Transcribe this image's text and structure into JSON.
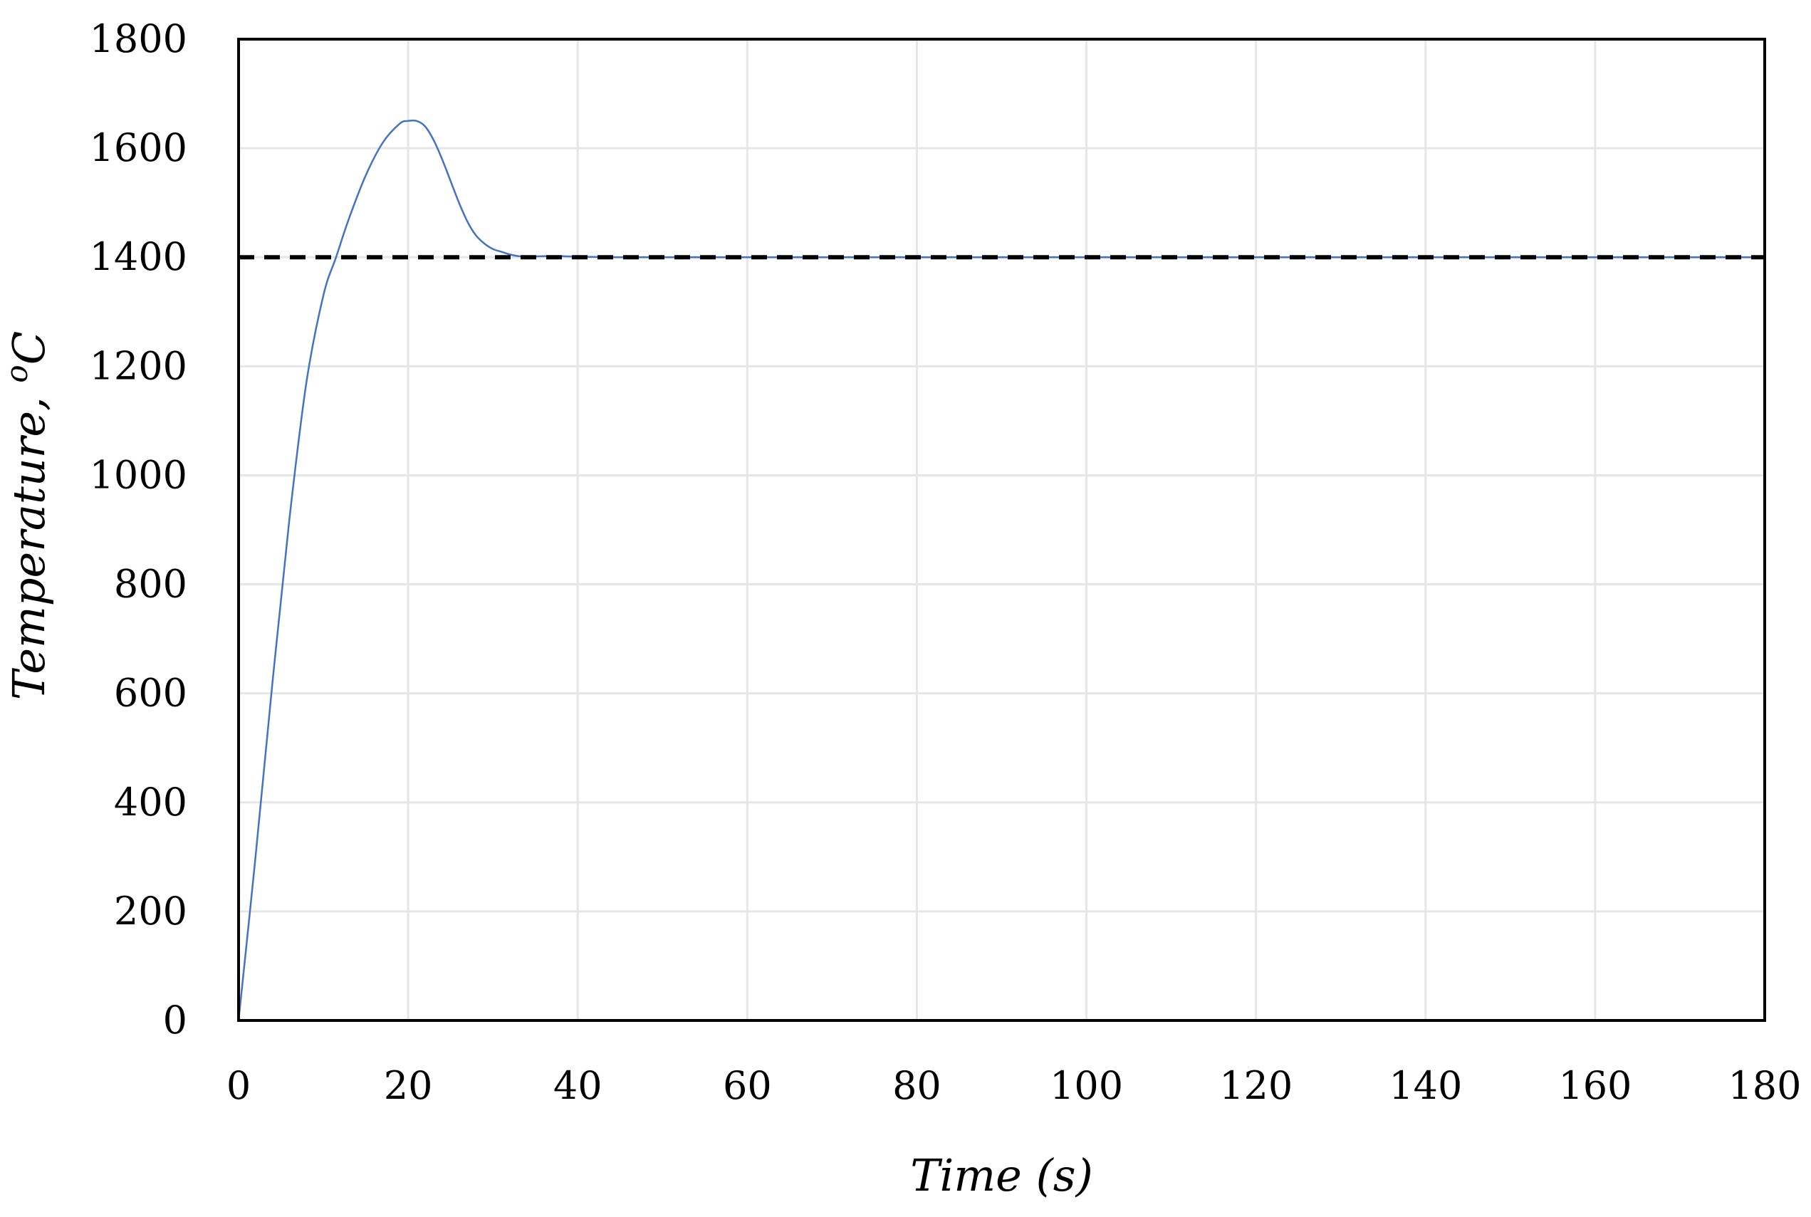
{
  "chart_data": {
    "type": "line",
    "title": "",
    "xlabel": "Time (s)",
    "ylabel_main": "Temperature, ",
    "ylabel_sup": "o",
    "ylabel_unit": "C",
    "xlim": [
      0,
      180
    ],
    "ylim": [
      0,
      1800
    ],
    "x_ticks": [
      0,
      20,
      40,
      60,
      80,
      100,
      120,
      140,
      160,
      180
    ],
    "y_ticks": [
      0,
      200,
      400,
      600,
      800,
      1000,
      1200,
      1400,
      1600,
      1800
    ],
    "grid": true,
    "legend": "none",
    "series": [
      {
        "color": "#4472c4",
        "style": "solid",
        "x": [
          0,
          2,
          4,
          6,
          8,
          10,
          11.5,
          13,
          15,
          17,
          19,
          20,
          21,
          22,
          23,
          24,
          25,
          26,
          27,
          28,
          29,
          30,
          31,
          32,
          33,
          34,
          36,
          38,
          40,
          45,
          50,
          60,
          80,
          100,
          120,
          140,
          160,
          180
        ],
        "y": [
          0,
          300,
          620,
          920,
          1170,
          1330,
          1400,
          1470,
          1550,
          1610,
          1645,
          1650,
          1650,
          1640,
          1615,
          1580,
          1540,
          1500,
          1465,
          1440,
          1425,
          1415,
          1410,
          1405,
          1402,
          1401,
          1402,
          1402,
          1401,
          1400,
          1400,
          1400,
          1400,
          1400,
          1400,
          1400,
          1400,
          1400
        ]
      },
      {
        "color": "#000000",
        "style": "dashed",
        "x": [
          0,
          180
        ],
        "y": [
          1400,
          1400
        ]
      }
    ]
  }
}
